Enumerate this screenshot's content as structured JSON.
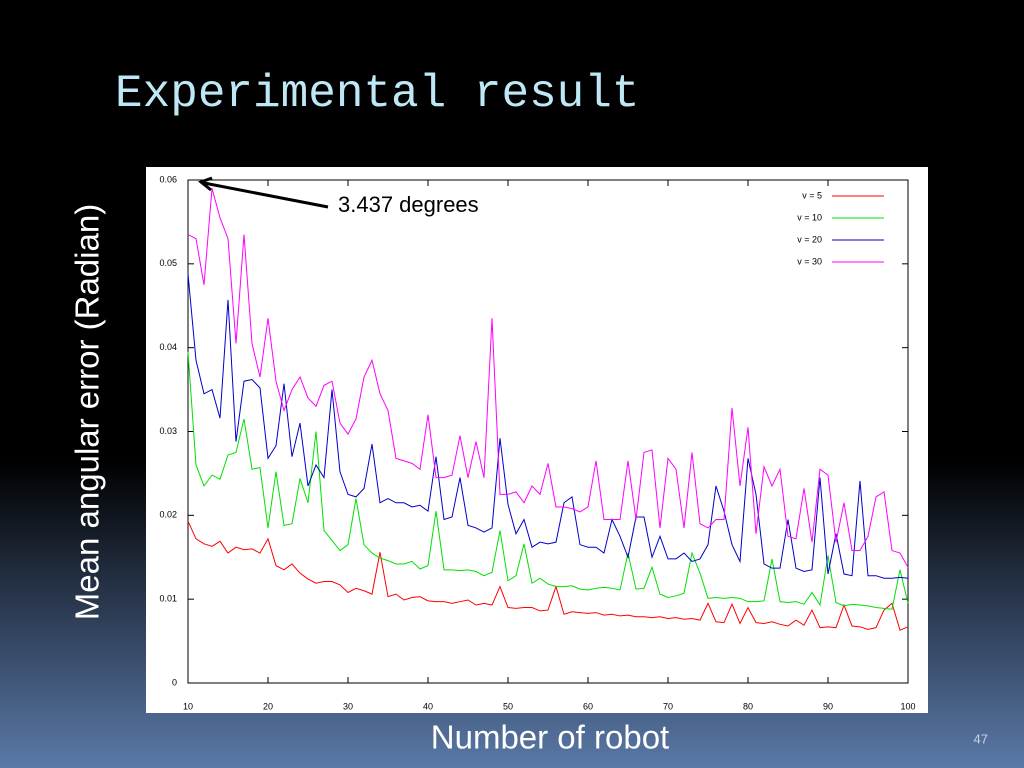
{
  "slide_title": "Experimental result",
  "page_number": "47",
  "chart_data": {
    "type": "line",
    "x_label": "Number of robot",
    "y_label": "Mean angular error (Radian)",
    "annotation": "3.437 degrees",
    "x": [
      10,
      11,
      12,
      13,
      14,
      15,
      16,
      17,
      18,
      19,
      20,
      21,
      22,
      23,
      24,
      25,
      26,
      27,
      28,
      29,
      30,
      31,
      32,
      33,
      34,
      35,
      36,
      37,
      38,
      39,
      40,
      41,
      42,
      43,
      44,
      45,
      46,
      47,
      48,
      49,
      50,
      51,
      52,
      53,
      54,
      55,
      56,
      57,
      58,
      59,
      60,
      61,
      62,
      63,
      64,
      65,
      66,
      67,
      68,
      69,
      70,
      71,
      72,
      73,
      74,
      75,
      76,
      77,
      78,
      79,
      80,
      81,
      82,
      83,
      84,
      85,
      86,
      87,
      88,
      89,
      90,
      91,
      92,
      93,
      94,
      95,
      96,
      97,
      98,
      99,
      100
    ],
    "series": [
      {
        "name": "v = 5",
        "color": "#ff0000",
        "values": [
          0.0193,
          0.0172,
          0.0166,
          0.0163,
          0.0169,
          0.0155,
          0.0162,
          0.0159,
          0.016,
          0.0155,
          0.0172,
          0.014,
          0.0135,
          0.0142,
          0.0131,
          0.0124,
          0.0119,
          0.0121,
          0.0121,
          0.0117,
          0.0108,
          0.0113,
          0.011,
          0.0106,
          0.0156,
          0.0103,
          0.0106,
          0.0099,
          0.0102,
          0.0103,
          0.0098,
          0.0097,
          0.0097,
          0.0095,
          0.0097,
          0.0099,
          0.0093,
          0.0095,
          0.0093,
          0.0115,
          0.009,
          0.0089,
          0.009,
          0.009,
          0.0086,
          0.0087,
          0.0115,
          0.0082,
          0.0085,
          0.0084,
          0.0083,
          0.0084,
          0.0081,
          0.0082,
          0.008,
          0.0081,
          0.0079,
          0.0079,
          0.0078,
          0.0079,
          0.0077,
          0.0078,
          0.0076,
          0.0077,
          0.0075,
          0.0095,
          0.0073,
          0.0072,
          0.0094,
          0.0071,
          0.009,
          0.0072,
          0.0071,
          0.0073,
          0.007,
          0.0068,
          0.0075,
          0.0069,
          0.0087,
          0.0066,
          0.0067,
          0.0066,
          0.0093,
          0.0068,
          0.0067,
          0.0064,
          0.0066,
          0.0087,
          0.0095,
          0.0063,
          0.0067
        ]
      },
      {
        "name": "v = 10",
        "color": "#00e000",
        "values": [
          0.0395,
          0.026,
          0.0235,
          0.0248,
          0.0243,
          0.0272,
          0.0275,
          0.0315,
          0.0255,
          0.0257,
          0.0185,
          0.0252,
          0.0188,
          0.019,
          0.0244,
          0.0215,
          0.03,
          0.0182,
          0.017,
          0.0158,
          0.0165,
          0.022,
          0.0165,
          0.0155,
          0.0149,
          0.0146,
          0.0142,
          0.0142,
          0.0145,
          0.0136,
          0.014,
          0.0205,
          0.0135,
          0.0135,
          0.0134,
          0.0135,
          0.0133,
          0.0128,
          0.0132,
          0.0182,
          0.0122,
          0.0128,
          0.0166,
          0.0119,
          0.0125,
          0.0118,
          0.0115,
          0.0115,
          0.0116,
          0.0112,
          0.0111,
          0.0113,
          0.0114,
          0.0113,
          0.0111,
          0.0155,
          0.0112,
          0.0113,
          0.0138,
          0.0106,
          0.0102,
          0.0104,
          0.0107,
          0.0155,
          0.0131,
          0.0101,
          0.0102,
          0.0101,
          0.0102,
          0.0101,
          0.0097,
          0.0097,
          0.0098,
          0.0148,
          0.0097,
          0.0096,
          0.0097,
          0.0094,
          0.0108,
          0.0093,
          0.0152,
          0.0096,
          0.0092,
          0.0094,
          0.0093,
          0.0092,
          0.009,
          0.0089,
          0.0088,
          0.0135,
          0.0095
        ]
      },
      {
        "name": "v = 20",
        "color": "#0000cc",
        "values": [
          0.0488,
          0.0385,
          0.0345,
          0.035,
          0.0316,
          0.0457,
          0.0288,
          0.036,
          0.0362,
          0.0352,
          0.0268,
          0.0283,
          0.0357,
          0.027,
          0.031,
          0.0235,
          0.026,
          0.0245,
          0.035,
          0.0252,
          0.0225,
          0.0222,
          0.0232,
          0.0285,
          0.0215,
          0.022,
          0.0215,
          0.0215,
          0.021,
          0.0212,
          0.0205,
          0.027,
          0.0195,
          0.0198,
          0.0245,
          0.0188,
          0.0185,
          0.018,
          0.0185,
          0.0292,
          0.0213,
          0.0178,
          0.0195,
          0.0162,
          0.0168,
          0.0166,
          0.0168,
          0.0215,
          0.0222,
          0.0165,
          0.0162,
          0.0162,
          0.0155,
          0.0195,
          0.0175,
          0.015,
          0.0198,
          0.0198,
          0.015,
          0.0175,
          0.0148,
          0.0148,
          0.0155,
          0.0145,
          0.0148,
          0.0165,
          0.0235,
          0.0205,
          0.0165,
          0.0145,
          0.0268,
          0.0225,
          0.0142,
          0.0137,
          0.0137,
          0.0195,
          0.0137,
          0.0133,
          0.0135,
          0.0245,
          0.013,
          0.0178,
          0.013,
          0.0128,
          0.0241,
          0.0128,
          0.0128,
          0.0125,
          0.0125,
          0.0126,
          0.0125
        ]
      },
      {
        "name": "v = 30",
        "color": "#ff00ff",
        "values": [
          0.0535,
          0.053,
          0.0475,
          0.059,
          0.0555,
          0.053,
          0.0405,
          0.0535,
          0.0405,
          0.0365,
          0.0435,
          0.036,
          0.0325,
          0.035,
          0.0365,
          0.034,
          0.033,
          0.0355,
          0.036,
          0.031,
          0.0297,
          0.0315,
          0.0365,
          0.0385,
          0.0345,
          0.0325,
          0.0268,
          0.0265,
          0.0262,
          0.0255,
          0.032,
          0.0245,
          0.0245,
          0.0248,
          0.0295,
          0.0245,
          0.0288,
          0.0245,
          0.0435,
          0.0225,
          0.0225,
          0.0228,
          0.0215,
          0.0235,
          0.0225,
          0.0262,
          0.021,
          0.021,
          0.0208,
          0.0204,
          0.021,
          0.0265,
          0.0195,
          0.0195,
          0.0195,
          0.0265,
          0.0195,
          0.0275,
          0.0278,
          0.0185,
          0.0268,
          0.0255,
          0.0185,
          0.0275,
          0.019,
          0.0185,
          0.0195,
          0.0195,
          0.0328,
          0.0235,
          0.0305,
          0.0178,
          0.0258,
          0.0235,
          0.0255,
          0.0175,
          0.0172,
          0.0232,
          0.0168,
          0.0255,
          0.0248,
          0.0168,
          0.0215,
          0.0158,
          0.0158,
          0.0175,
          0.0222,
          0.0228,
          0.0158,
          0.0155,
          0.0138
        ]
      }
    ],
    "xlim": [
      10,
      100
    ],
    "xticks": [
      10,
      20,
      30,
      40,
      50,
      60,
      70,
      80,
      90,
      100
    ],
    "ylim": [
      0,
      0.06
    ],
    "yticks": [
      0,
      0.01,
      0.02,
      0.03,
      0.04,
      0.05,
      0.06
    ],
    "legend": "upper-right"
  }
}
